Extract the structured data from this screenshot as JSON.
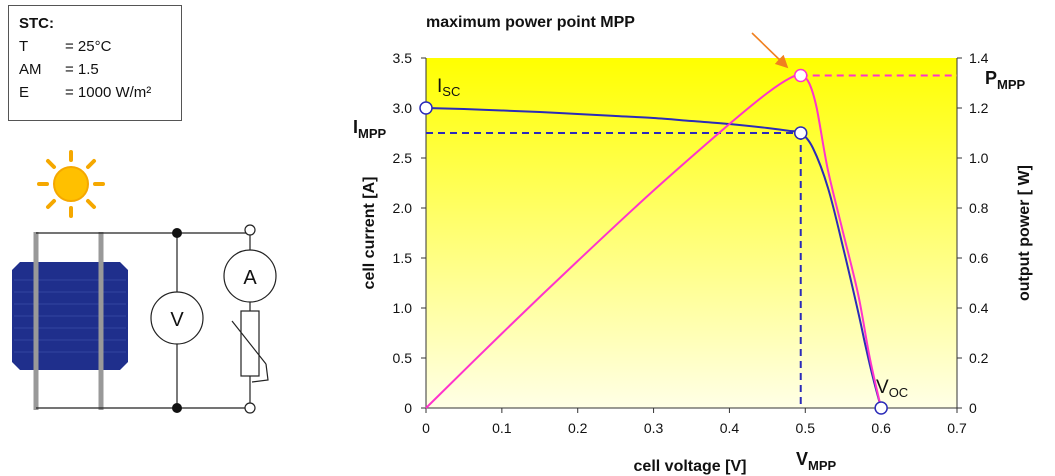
{
  "stc": {
    "title": "STC:",
    "rows": [
      {
        "key": "T",
        "val": "= 25°C"
      },
      {
        "key": "AM",
        "val": "= 1.5"
      },
      {
        "key": "E",
        "val": "= 1000 W/m²"
      }
    ]
  },
  "circuit": {
    "voltmeter_label": "V",
    "ammeter_label": "A"
  },
  "chart_data": {
    "type": "line",
    "title": "maximum power point MPP",
    "xlabel": "cell voltage [V]",
    "ylabel": "cell current [A]",
    "y2label": "output power [ W]",
    "xlim": [
      0,
      0.7
    ],
    "ylim": [
      0,
      3.5
    ],
    "y2lim": [
      0,
      1.4
    ],
    "x_ticks": [
      0,
      0.1,
      0.2,
      0.3,
      0.4,
      0.5,
      0.6,
      0.7
    ],
    "x_tick_labels": [
      "0",
      "0.1",
      "0.2",
      "0.3",
      "0.4",
      "0.5",
      "0.6",
      "0.7"
    ],
    "y_ticks": [
      0,
      0.5,
      1.0,
      1.5,
      2.0,
      2.5,
      3.0,
      3.5
    ],
    "y_tick_labels": [
      "0",
      "0.5",
      "1.0",
      "1.5",
      "2.0",
      "2.5",
      "3.0",
      "3.5"
    ],
    "y2_ticks": [
      0,
      0.2,
      0.4,
      0.6,
      0.8,
      1.0,
      1.2,
      1.4
    ],
    "y2_tick_labels": [
      "0",
      "0.2",
      "0.4",
      "0.6",
      "0.8",
      "1.0",
      "1.2",
      "1.4"
    ],
    "grid": false,
    "series": [
      {
        "color": "#2b2bb8",
        "axis": "left",
        "x": [
          0,
          0.05,
          0.1,
          0.15,
          0.2,
          0.25,
          0.3,
          0.35,
          0.4,
          0.45,
          0.48,
          0.494,
          0.51,
          0.53,
          0.55,
          0.57,
          0.58,
          0.59,
          0.6
        ],
        "y": [
          3.0,
          2.99,
          2.975,
          2.96,
          2.94,
          2.92,
          2.9,
          2.87,
          2.84,
          2.8,
          2.77,
          2.75,
          2.6,
          2.2,
          1.6,
          0.95,
          0.6,
          0.28,
          0
        ]
      },
      {
        "color": "#ff33cc",
        "axis": "right",
        "x": [
          0,
          0.1,
          0.2,
          0.3,
          0.4,
          0.45,
          0.48,
          0.494,
          0.505,
          0.515,
          0.53,
          0.55,
          0.57,
          0.585,
          0.6
        ],
        "y": [
          0,
          0.298,
          0.588,
          0.87,
          1.136,
          1.26,
          1.32,
          1.33,
          1.3,
          1.2,
          0.95,
          0.7,
          0.45,
          0.2,
          0
        ]
      }
    ],
    "points": [
      {
        "name": "I_SC",
        "axis": "left",
        "x": 0,
        "y": 3.0
      },
      {
        "name": "MPP current",
        "axis": "left",
        "x": 0.494,
        "y": 2.75
      },
      {
        "name": "P_MPP",
        "axis": "right",
        "x": 0.494,
        "y": 1.33
      },
      {
        "name": "V_OC",
        "axis": "left",
        "x": 0.6,
        "y": 0
      }
    ],
    "annotations": {
      "isc": {
        "main": "I",
        "sub": "SC"
      },
      "impp": {
        "main": "I",
        "sub": "MPP"
      },
      "pmpp": {
        "main": "P",
        "sub": "MPP"
      },
      "voc": {
        "main": "V",
        "sub": "OC"
      },
      "vmpp": {
        "main": "V",
        "sub": "MPP"
      }
    },
    "mpp": {
      "v": 0.494,
      "i": 2.75,
      "p": 1.33
    }
  },
  "colors": {
    "current_curve": "#2b2bb8",
    "power_curve": "#ff33cc",
    "arrow": "#f08020",
    "plot_top": "#ffff00",
    "plot_bottom": "#ffffe6",
    "cell": "#1f2f8c"
  }
}
